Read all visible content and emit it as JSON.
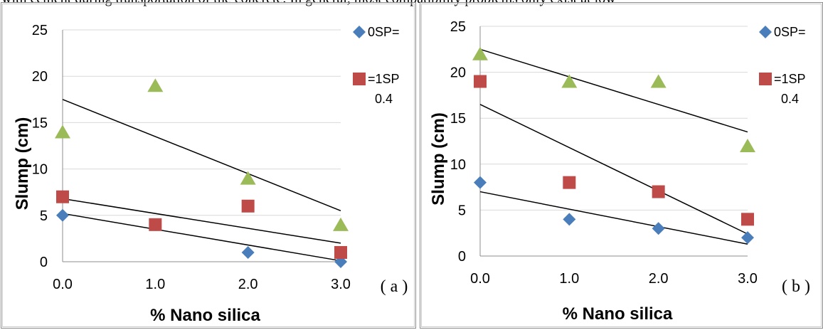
{
  "page": {
    "top_text": "with cement during transportation of the concrete. In general, most compatibility problems only exist at low"
  },
  "colors": {
    "sp0": "#4a7ebb",
    "sp1": "#be4b48",
    "sp2": "#9bbb59",
    "trend": "#000000",
    "grid": "#d9d9d9"
  },
  "chart_data": [
    {
      "type": "scatter",
      "panel_label": "( a )",
      "xlabel": "% Nano silica",
      "ylabel": "Slump (cm)",
      "xlim": [
        0,
        3
      ],
      "ylim": [
        0,
        25
      ],
      "x_ticks": [
        "0.0",
        "1.0",
        "2.0",
        "3.0"
      ],
      "y_ticks": [
        "0",
        "5",
        "10",
        "15",
        "20",
        "25"
      ],
      "grid": "horizontal",
      "legend_position": "right",
      "legend": [
        {
          "marker": "diamond",
          "text": "0SP=",
          "note": ""
        },
        {
          "marker": "square",
          "text": "=1SP",
          "note": "0.4"
        }
      ],
      "series": [
        {
          "marker": "diamond",
          "x": [
            0,
            1,
            2,
            3
          ],
          "y": [
            5,
            4,
            1,
            0
          ],
          "trend": [
            5.2,
            -1.7
          ]
        },
        {
          "marker": "square",
          "x": [
            0,
            1,
            2,
            3
          ],
          "y": [
            7,
            4,
            6,
            1
          ],
          "trend": [
            6.8,
            -1.6
          ]
        },
        {
          "marker": "triangle",
          "x": [
            0,
            1,
            2,
            3
          ],
          "y": [
            14,
            19,
            9,
            4
          ],
          "trend": [
            17.5,
            -4.0
          ]
        }
      ]
    },
    {
      "type": "scatter",
      "panel_label": "( b )",
      "xlabel": "% Nano silica",
      "ylabel": "Slump (cm)",
      "xlim": [
        0,
        3
      ],
      "ylim": [
        0,
        25
      ],
      "x_ticks": [
        "0.0",
        "1.0",
        "2.0",
        "3.0"
      ],
      "y_ticks": [
        "0",
        "5",
        "10",
        "15",
        "20",
        "25"
      ],
      "grid": "horizontal",
      "legend_position": "right",
      "legend": [
        {
          "marker": "diamond",
          "text": "0SP=",
          "note": ""
        },
        {
          "marker": "square",
          "text": "=1SP",
          "note": "0.4"
        }
      ],
      "series": [
        {
          "marker": "diamond",
          "x": [
            0,
            1,
            2,
            3
          ],
          "y": [
            8,
            4,
            3,
            2
          ],
          "trend": [
            7.0,
            -1.9
          ]
        },
        {
          "marker": "square",
          "x": [
            0,
            1,
            2,
            3
          ],
          "y": [
            19,
            8,
            7,
            4
          ],
          "trend": [
            16.5,
            -4.7
          ]
        },
        {
          "marker": "triangle",
          "x": [
            0,
            1,
            2,
            3
          ],
          "y": [
            22,
            19,
            19,
            12
          ],
          "trend": [
            22.5,
            -3.0
          ]
        }
      ]
    }
  ]
}
